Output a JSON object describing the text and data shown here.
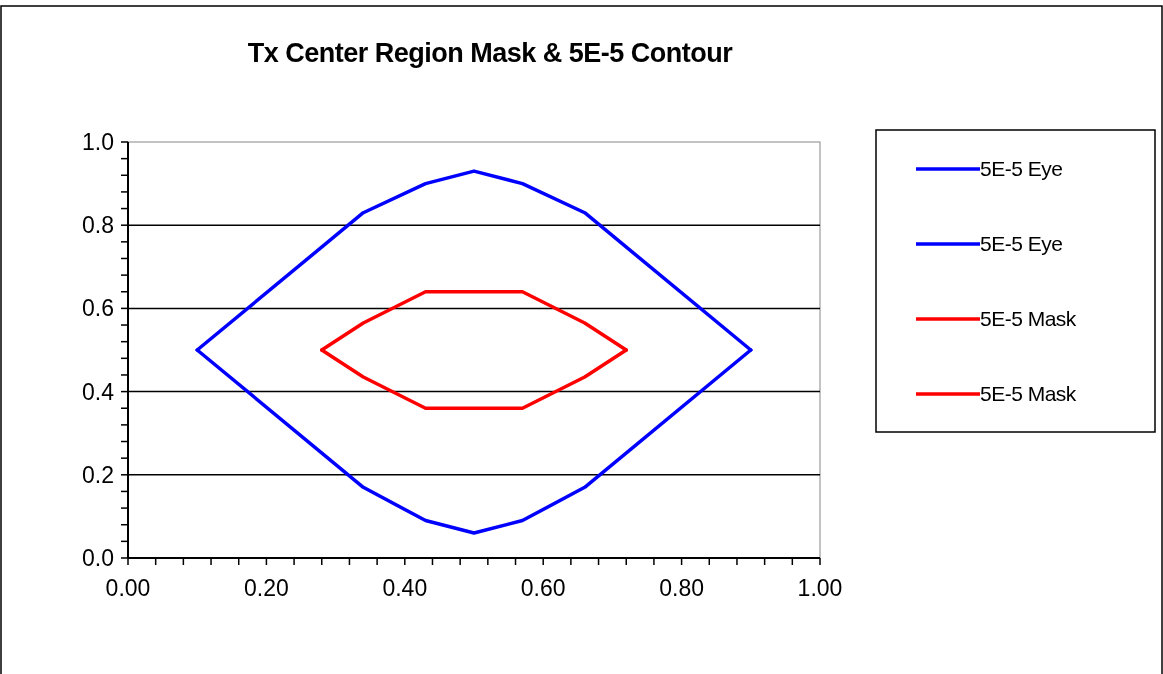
{
  "chart_data": {
    "type": "line",
    "title": "Tx Center Region Mask & 5E-5 Contour",
    "marker": "none",
    "line_style": "solid",
    "grid": "y",
    "legend": "right",
    "xlim": [
      0,
      1
    ],
    "ylim": [
      0,
      1
    ],
    "xticks": [
      {
        "value": 0,
        "label": "0.00"
      },
      {
        "value": 0.04,
        "label": null
      },
      {
        "value": 0.08,
        "label": null
      },
      {
        "value": 0.12,
        "label": null
      },
      {
        "value": 0.16,
        "label": null
      },
      {
        "value": 0.2,
        "label": "0.20"
      },
      {
        "value": 0.24,
        "label": null
      },
      {
        "value": 0.28,
        "label": null
      },
      {
        "value": 0.32,
        "label": null
      },
      {
        "value": 0.36,
        "label": null
      },
      {
        "value": 0.4,
        "label": "0.40"
      },
      {
        "value": 0.44,
        "label": null
      },
      {
        "value": 0.48,
        "label": null
      },
      {
        "value": 0.52,
        "label": null
      },
      {
        "value": 0.56,
        "label": null
      },
      {
        "value": 0.6,
        "label": "0.60"
      },
      {
        "value": 0.64,
        "label": null
      },
      {
        "value": 0.68,
        "label": null
      },
      {
        "value": 0.72,
        "label": null
      },
      {
        "value": 0.76,
        "label": null
      },
      {
        "value": 0.8,
        "label": "0.80"
      },
      {
        "value": 0.84,
        "label": null
      },
      {
        "value": 0.88,
        "label": null
      },
      {
        "value": 0.92,
        "label": null
      },
      {
        "value": 0.96,
        "label": null
      },
      {
        "value": 1,
        "label": "1.00"
      }
    ],
    "yticks": [
      {
        "value": 0,
        "label": "0.0"
      },
      {
        "value": 0.04,
        "label": null
      },
      {
        "value": 0.08,
        "label": null
      },
      {
        "value": 0.12,
        "label": null
      },
      {
        "value": 0.16,
        "label": null
      },
      {
        "value": 0.2,
        "label": "0.2"
      },
      {
        "value": 0.24,
        "label": null
      },
      {
        "value": 0.28,
        "label": null
      },
      {
        "value": 0.32,
        "label": null
      },
      {
        "value": 0.36,
        "label": null
      },
      {
        "value": 0.4,
        "label": "0.4"
      },
      {
        "value": 0.44,
        "label": null
      },
      {
        "value": 0.48,
        "label": null
      },
      {
        "value": 0.52,
        "label": null
      },
      {
        "value": 0.56,
        "label": null
      },
      {
        "value": 0.6,
        "label": "0.6"
      },
      {
        "value": 0.64,
        "label": null
      },
      {
        "value": 0.68,
        "label": null
      },
      {
        "value": 0.72,
        "label": null
      },
      {
        "value": 0.76,
        "label": null
      },
      {
        "value": 0.8,
        "label": "0.8"
      },
      {
        "value": 0.84,
        "label": null
      },
      {
        "value": 0.88,
        "label": null
      },
      {
        "value": 0.92,
        "label": null
      },
      {
        "value": 0.96,
        "label": null
      },
      {
        "value": 1,
        "label": "1.0"
      }
    ],
    "series": [
      {
        "name": "5E-5 Eye",
        "color": "#0000ff",
        "x": [
          0.1,
          0.34,
          0.43,
          0.5,
          0.57,
          0.66,
          0.9
        ],
        "values": [
          0.5,
          0.83,
          0.9,
          0.93,
          0.9,
          0.83,
          0.5
        ]
      },
      {
        "name": "5E-5 Eye",
        "color": "#0000ff",
        "x": [
          0.1,
          0.34,
          0.43,
          0.5,
          0.57,
          0.66,
          0.9
        ],
        "values": [
          0.5,
          0.17,
          0.09,
          0.06,
          0.09,
          0.17,
          0.5
        ]
      },
      {
        "name": "5E-5 Mask",
        "color": "#ff0000",
        "x": [
          0.28,
          0.34,
          0.43,
          0.57,
          0.66,
          0.72
        ],
        "values": [
          0.5,
          0.565,
          0.64,
          0.64,
          0.565,
          0.5
        ]
      },
      {
        "name": "5E-5 Mask",
        "color": "#ff0000",
        "x": [
          0.28,
          0.34,
          0.43,
          0.57,
          0.66,
          0.72
        ],
        "values": [
          0.5,
          0.435,
          0.36,
          0.36,
          0.435,
          0.5
        ]
      }
    ]
  }
}
